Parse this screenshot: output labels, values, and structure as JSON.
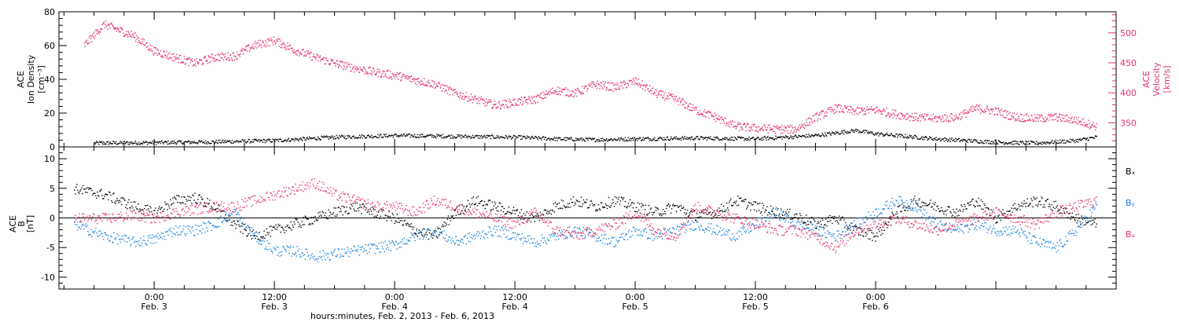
{
  "colors": {
    "black": "#000000",
    "pink": "#e8336a",
    "blue": "#1a82e0"
  },
  "chart_data": [
    {
      "type": "scatter",
      "panel": "top",
      "ylabel_lines": [
        "ACE",
        "Ion Density",
        "[cm⁻³]"
      ],
      "ylim": [
        0,
        80
      ],
      "yticks": [
        0,
        20,
        40,
        60,
        80
      ],
      "y2label_lines": [
        "ACE",
        "Velocity",
        "[km/s]"
      ],
      "y2lim": [
        310,
        535
      ],
      "y2ticks": [
        350,
        400,
        450,
        500
      ],
      "series": [
        {
          "axis": "left",
          "color": "black",
          "x": [
            -6,
            0,
            6,
            12,
            18,
            24,
            30,
            36,
            40,
            44,
            48,
            54,
            60,
            66,
            70,
            72,
            78,
            84,
            88,
            92,
            94
          ],
          "y": [
            2.5,
            2.8,
            3.2,
            4,
            6,
            7,
            6.5,
            6,
            5,
            4.5,
            5,
            5.5,
            5,
            7,
            10,
            8,
            5,
            3,
            2.5,
            4,
            6
          ]
        },
        {
          "axis": "right",
          "color": "pink",
          "x": [
            -7,
            -5,
            -2,
            0,
            2,
            4,
            6,
            8,
            10,
            12,
            14,
            16,
            18,
            20,
            22,
            24,
            26,
            28,
            30,
            32,
            34,
            36,
            38,
            40,
            42,
            44,
            46,
            48,
            50,
            52,
            54,
            56,
            58,
            60,
            62,
            64,
            66,
            68,
            70,
            72,
            74,
            76,
            78,
            80,
            82,
            84,
            86,
            88,
            90,
            92,
            94
          ],
          "y": [
            480,
            515,
            495,
            470,
            460,
            450,
            460,
            462,
            480,
            488,
            472,
            460,
            450,
            442,
            435,
            430,
            422,
            415,
            400,
            390,
            380,
            385,
            390,
            405,
            400,
            415,
            410,
            420,
            400,
            390,
            372,
            360,
            345,
            342,
            340,
            340,
            360,
            375,
            370,
            372,
            365,
            360,
            358,
            360,
            375,
            370,
            360,
            358,
            360,
            355,
            345
          ]
        }
      ]
    },
    {
      "type": "scatter",
      "panel": "bottom",
      "ylabel_lines": [
        "ACE",
        "B",
        "[nT]"
      ],
      "ylim": [
        -12,
        12
      ],
      "yticks": [
        -10,
        -5,
        0,
        5,
        10
      ],
      "legend": [
        "Bₓ",
        "Bᵧ",
        "Bₔ"
      ],
      "series": [
        {
          "color": "black",
          "x": [
            -8,
            -5,
            -2,
            0,
            2,
            4,
            6,
            8,
            10,
            12,
            14,
            16,
            18,
            20,
            22,
            24,
            26,
            28,
            30,
            32,
            34,
            36,
            38,
            40,
            42,
            44,
            46,
            48,
            50,
            52,
            54,
            56,
            58,
            60,
            62,
            64,
            66,
            68,
            70,
            72,
            74,
            76,
            78,
            80,
            82,
            84,
            86,
            88,
            90,
            92,
            94
          ],
          "y": [
            5,
            4,
            2,
            1,
            3,
            3.5,
            2,
            -1,
            -3,
            -2,
            -1,
            0,
            1,
            2,
            1,
            0,
            -2,
            -3,
            1,
            3,
            2,
            1,
            0,
            2,
            3,
            2,
            3,
            2,
            1,
            2,
            0.5,
            1,
            3,
            2,
            1,
            0.5,
            -1,
            0,
            -2,
            -3,
            1,
            3,
            2,
            1,
            3,
            0,
            2,
            3,
            2,
            0,
            -1
          ]
        },
        {
          "color": "blue",
          "x": [
            -8,
            -5,
            -2,
            0,
            2,
            4,
            6,
            8,
            10,
            12,
            14,
            16,
            18,
            20,
            22,
            24,
            26,
            28,
            30,
            32,
            34,
            36,
            38,
            40,
            42,
            44,
            46,
            48,
            50,
            52,
            54,
            56,
            58,
            60,
            62,
            64,
            66,
            68,
            70,
            72,
            74,
            76,
            78,
            80,
            82,
            84,
            86,
            88,
            90,
            92,
            94
          ],
          "y": [
            -1,
            -3,
            -4,
            -3.5,
            -2,
            -2,
            -1,
            1,
            -3,
            -5.5,
            -5.5,
            -6.5,
            -6,
            -5.5,
            -5,
            -4.5,
            -3,
            -2,
            -4,
            -3,
            -2,
            -3,
            -4,
            -3,
            -2,
            -3,
            -4,
            -2,
            -3,
            -2,
            -1,
            -2,
            -3,
            -1,
            1,
            -1,
            -2,
            -3,
            -1,
            1,
            3,
            2,
            -1,
            -2,
            -1,
            -2,
            -2,
            -4,
            -5,
            -2,
            2
          ]
        },
        {
          "color": "pink",
          "x": [
            -8,
            -5,
            -2,
            0,
            2,
            4,
            6,
            8,
            10,
            12,
            14,
            16,
            18,
            20,
            22,
            24,
            26,
            28,
            30,
            32,
            34,
            36,
            38,
            40,
            42,
            44,
            46,
            48,
            50,
            52,
            54,
            56,
            58,
            60,
            62,
            64,
            66,
            68,
            70,
            72,
            74,
            76,
            78,
            80,
            82,
            84,
            86,
            88,
            90,
            92,
            94
          ],
          "y": [
            0,
            0,
            0.5,
            0,
            1,
            1.5,
            2,
            2,
            3,
            4,
            5,
            6,
            4,
            3,
            2,
            2,
            1,
            3,
            2,
            1,
            0,
            -1,
            1,
            -2,
            -3,
            -2,
            -1,
            1,
            -2,
            -3,
            2,
            1,
            0,
            -1,
            -2,
            -2,
            -3,
            -5,
            -2,
            -1,
            0,
            -1,
            -2,
            -1,
            0,
            1,
            0,
            -1,
            1,
            2,
            3
          ]
        }
      ]
    }
  ],
  "x_axis": {
    "range": [
      -9.5,
      96
    ],
    "ticks": [
      {
        "x": 0,
        "time": "0:00",
        "day": "Feb. 3"
      },
      {
        "x": 12,
        "time": "12:00",
        "day": "Feb. 3"
      },
      {
        "x": 24,
        "time": "0:00",
        "day": "Feb. 4"
      },
      {
        "x": 36,
        "time": "12:00",
        "day": "Feb. 4"
      },
      {
        "x": 48,
        "time": "0:00",
        "day": "Feb. 5"
      },
      {
        "x": 60,
        "time": "12:00",
        "day": "Feb. 5"
      },
      {
        "x": 72,
        "time": "0:00",
        "day": "Feb. 6"
      }
    ],
    "caption": "hours:minutes, Feb.  2, 2013 - Feb.  6, 2013"
  }
}
